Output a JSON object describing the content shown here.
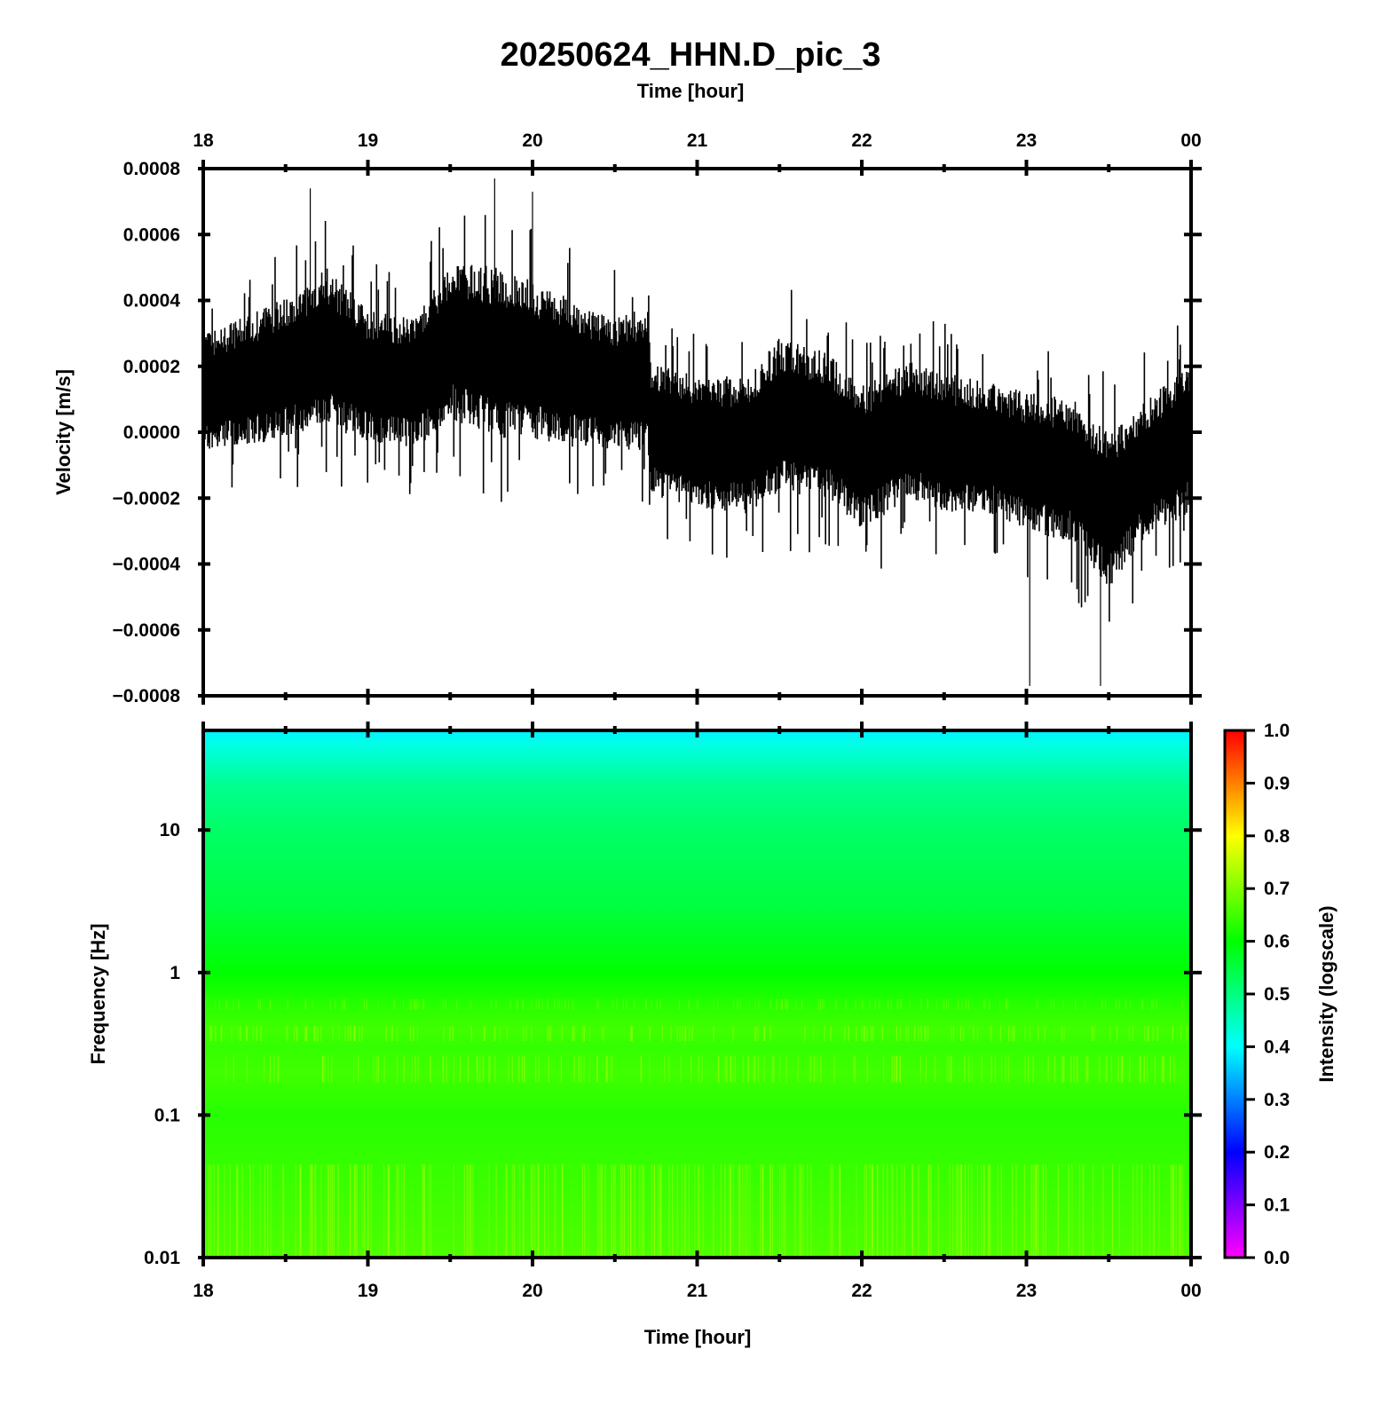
{
  "figure": {
    "title": "20250624_HHN.D_pic_3",
    "top_time_label": "Time [hour]",
    "bottom_time_label": "Time [hour]"
  },
  "chart_data": [
    {
      "type": "line",
      "name": "seismogram",
      "ylabel": "Velocity [m/s]",
      "x_ticks": [
        "18",
        "19",
        "20",
        "21",
        "22",
        "23",
        "00"
      ],
      "y_ticks": [
        "0.0008",
        "0.0006",
        "0.0004",
        "0.0002",
        "0.0000",
        "−0.0002",
        "−0.0004",
        "−0.0006",
        "−0.0008"
      ],
      "xlim": [
        18,
        24
      ],
      "ylim": [
        -0.0008,
        0.0008
      ],
      "grid": false,
      "line_color": "#000000",
      "envelope": {
        "hours": [
          18.0,
          18.3,
          18.6,
          18.75,
          19.0,
          19.3,
          19.5,
          19.8,
          20.0,
          20.3,
          20.5,
          20.7,
          20.72,
          21.0,
          21.3,
          21.5,
          21.8,
          22.0,
          22.3,
          22.5,
          22.8,
          23.0,
          23.3,
          23.5,
          23.7,
          24.0
        ],
        "center": [
          0.00012,
          0.00016,
          0.00022,
          0.00026,
          0.00017,
          0.00015,
          0.00028,
          0.00024,
          0.00022,
          0.00017,
          0.00015,
          0.00016,
          1e-05,
          -3e-05,
          -4e-05,
          5e-05,
          2e-05,
          -8e-05,
          1e-05,
          -3e-05,
          -5e-05,
          -9e-05,
          -0.00012,
          -0.00024,
          -0.00012,
          -2e-05
        ],
        "half_amp": [
          0.00018,
          0.0002,
          0.00022,
          0.00024,
          0.0002,
          0.0002,
          0.00024,
          0.00026,
          0.00024,
          0.00022,
          0.0002,
          0.00022,
          0.0002,
          0.0002,
          0.00021,
          0.00024,
          0.00022,
          0.00022,
          0.00021,
          0.00021,
          0.0002,
          0.00021,
          0.00022,
          0.00024,
          0.00021,
          0.00022
        ]
      },
      "extremes": [
        {
          "hour": 18.65,
          "value": 0.00074
        },
        {
          "hour": 19.77,
          "value": 0.00077
        },
        {
          "hour": 20.0,
          "value": 0.00073
        },
        {
          "hour": 23.02,
          "value": -0.00077
        },
        {
          "hour": 23.45,
          "value": -0.00077
        }
      ]
    },
    {
      "type": "heatmap",
      "name": "spectrogram",
      "ylabel": "Frequency [Hz]",
      "x_ticks": [
        "18",
        "19",
        "20",
        "21",
        "22",
        "23",
        "00"
      ],
      "y_ticks": [
        "10",
        "1",
        "0.1",
        "0.01"
      ],
      "xlim": [
        18,
        24
      ],
      "ylim": [
        0.01,
        50
      ],
      "y_scale": "log",
      "colorbar": {
        "label": "Intensity (logscale)",
        "ticks": [
          "1.0",
          "0.9",
          "0.8",
          "0.7",
          "0.6",
          "0.5",
          "0.4",
          "0.3",
          "0.2",
          "0.1",
          "0.0"
        ],
        "range": [
          0.0,
          1.0
        ],
        "colors": [
          "#ff00ff",
          "#8000ff",
          "#0000ff",
          "#0080ff",
          "#00ffff",
          "#00ff80",
          "#00ff00",
          "#80ff00",
          "#ffff00",
          "#ff8000",
          "#ff0000"
        ]
      },
      "intensity_profile": {
        "freq_hz": [
          0.01,
          0.05,
          0.1,
          0.2,
          0.3,
          0.4,
          0.6,
          1.0,
          3.0,
          10.0,
          20.0,
          30.0,
          40.0,
          50.0
        ],
        "intensity": [
          0.66,
          0.64,
          0.63,
          0.65,
          0.64,
          0.65,
          0.63,
          0.6,
          0.55,
          0.52,
          0.49,
          0.45,
          0.42,
          0.39
        ]
      }
    }
  ]
}
